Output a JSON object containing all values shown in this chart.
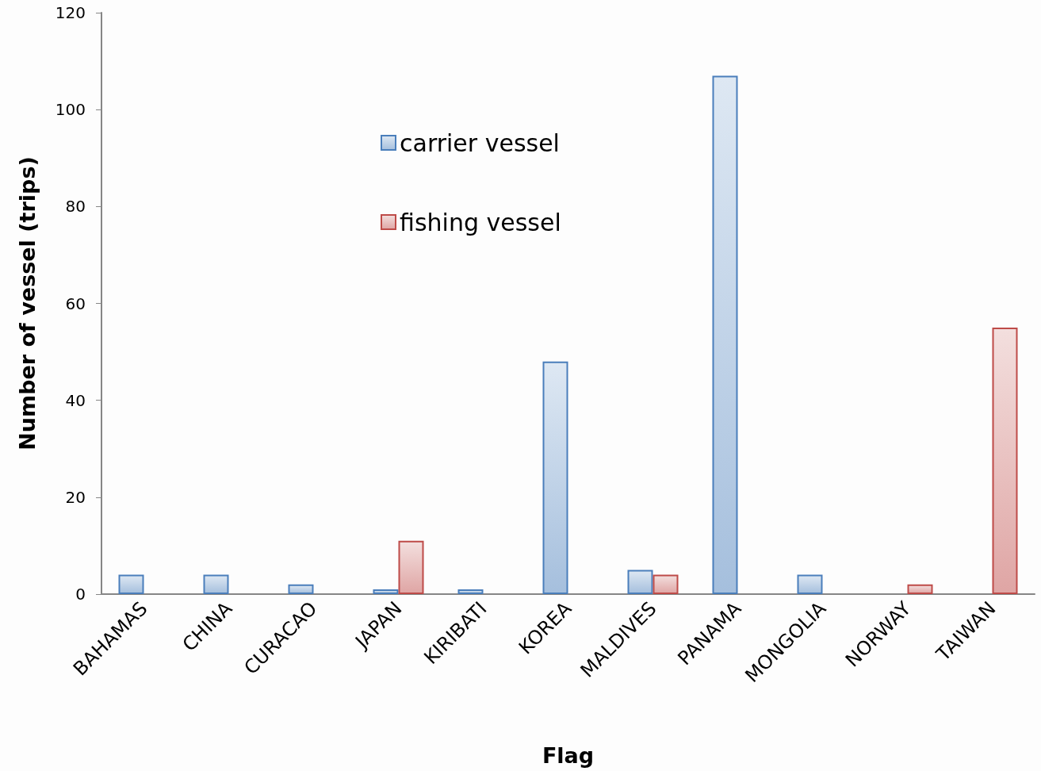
{
  "chart_data": {
    "type": "bar",
    "xlabel": "Flag",
    "ylabel": "Number of vessel (trips)",
    "categories": [
      "BAHAMAS",
      "CHINA",
      "CURACAO",
      "JAPAN",
      "KIRIBATI",
      "KOREA",
      "MALDIVES",
      "PANAMA",
      "MONGOLIA",
      "NORWAY",
      "TAIWAN"
    ],
    "series": [
      {
        "name": "carrier vessel",
        "color": "#4a7ebb",
        "values": [
          4,
          4,
          2,
          1,
          1,
          48,
          5,
          107,
          4,
          null,
          null
        ]
      },
      {
        "name": "fishing vessel",
        "color": "#be4b48",
        "values": [
          null,
          null,
          null,
          11,
          null,
          null,
          4,
          null,
          null,
          2,
          55
        ]
      }
    ],
    "ylim": [
      0,
      120
    ],
    "yticks": [
      0,
      20,
      40,
      60,
      80,
      100,
      120
    ],
    "grid": false,
    "legend": "top"
  }
}
